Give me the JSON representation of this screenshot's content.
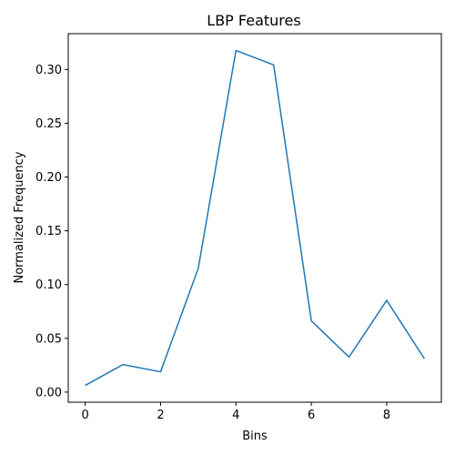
{
  "chart_data": {
    "type": "line",
    "title": "LBP Features",
    "xlabel": "Bins",
    "ylabel": "Normalized Frequency",
    "x": [
      0,
      1,
      2,
      3,
      4,
      5,
      6,
      7,
      8,
      9
    ],
    "series": [
      {
        "values": [
          0.0062,
          0.0256,
          0.0189,
          0.1151,
          0.3177,
          0.3043,
          0.0663,
          0.0326,
          0.0853,
          0.0311
        ],
        "color": "#1f77b4"
      }
    ],
    "xlim": [
      -0.45,
      9.45
    ],
    "ylim": [
      -0.0094,
      0.3333
    ],
    "xticks": [
      0,
      2,
      4,
      6,
      8
    ],
    "yticks": [
      0.0,
      0.05,
      0.1,
      0.15,
      0.2,
      0.25,
      0.3
    ],
    "xtick_labels": [
      "0",
      "2",
      "4",
      "6",
      "8"
    ],
    "ytick_labels": [
      "0.00",
      "0.05",
      "0.10",
      "0.15",
      "0.20",
      "0.25",
      "0.30"
    ],
    "grid": false,
    "legend": "none"
  }
}
